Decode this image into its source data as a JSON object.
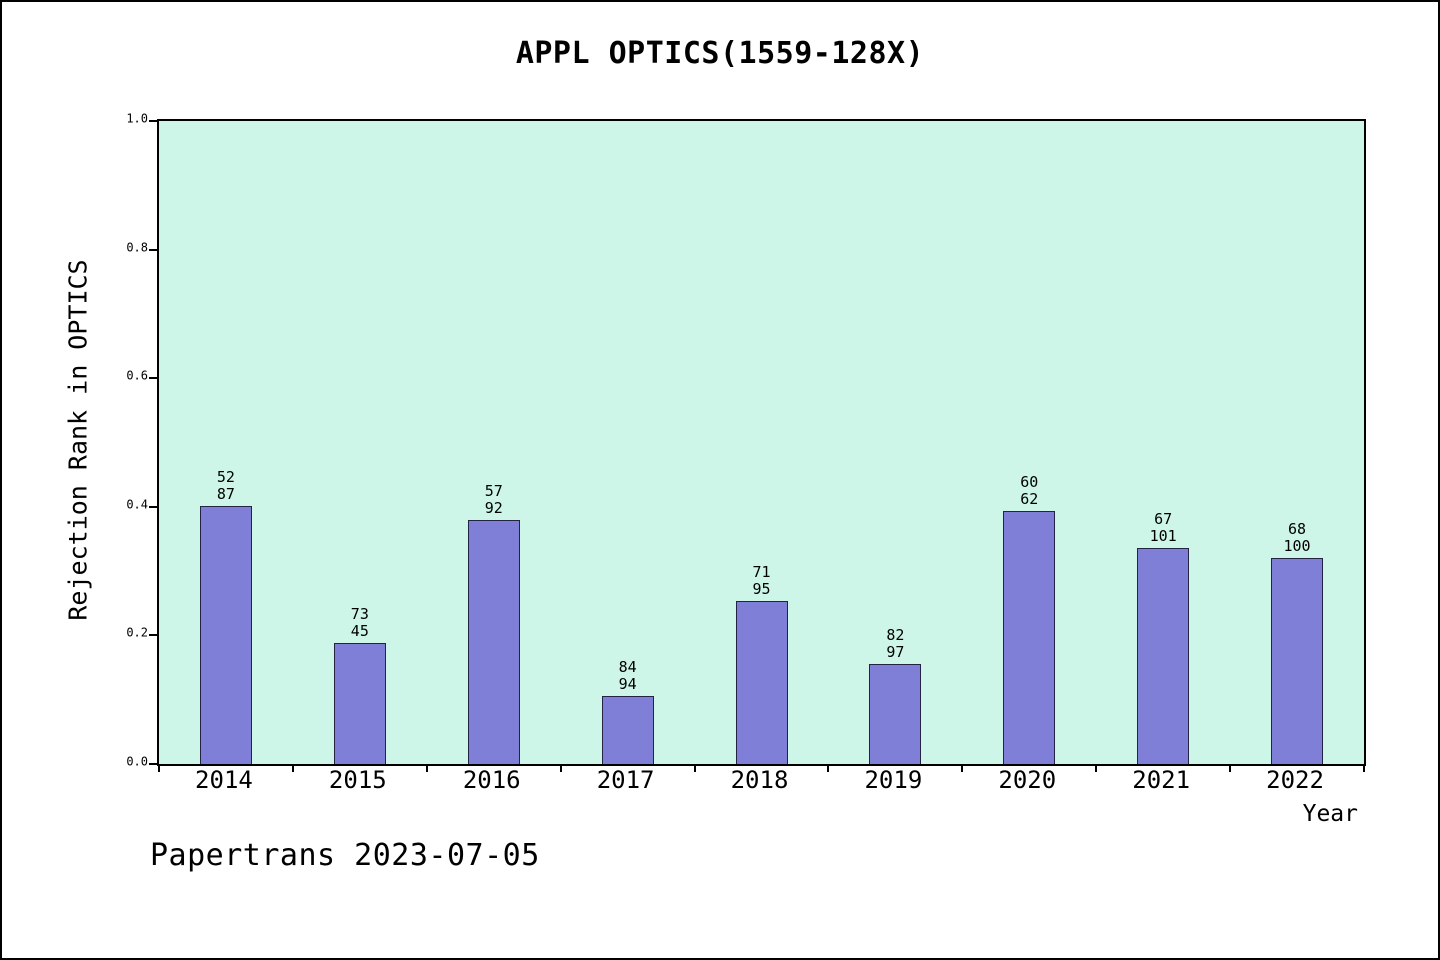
{
  "footer": "Papertrans 2023-07-05",
  "chart_data": {
    "type": "bar",
    "title": "APPL OPTICS(1559-128X)",
    "xlabel": "Year",
    "ylabel": "Rejection Rank in OPTICS",
    "ylim": [
      0.0,
      1.0
    ],
    "yticks": [
      0.0,
      0.2,
      0.4,
      0.6,
      0.8,
      1.0
    ],
    "grid": false,
    "legend_position": "none",
    "plot_bg": "#cdf6e9",
    "bar_color": "#7f7fd8",
    "categories": [
      "2014",
      "2015",
      "2016",
      "2017",
      "2018",
      "2019",
      "2020",
      "2021",
      "2022"
    ],
    "values": [
      0.402,
      0.188,
      0.38,
      0.106,
      0.253,
      0.155,
      0.394,
      0.336,
      0.32
    ],
    "bar_labels": [
      [
        "52",
        "87"
      ],
      [
        "73",
        "45"
      ],
      [
        "57",
        "92"
      ],
      [
        "84",
        "94"
      ],
      [
        "71",
        "95"
      ],
      [
        "82",
        "97"
      ],
      [
        "60",
        "62"
      ],
      [
        "67",
        "101"
      ],
      [
        "68",
        "100"
      ]
    ]
  }
}
